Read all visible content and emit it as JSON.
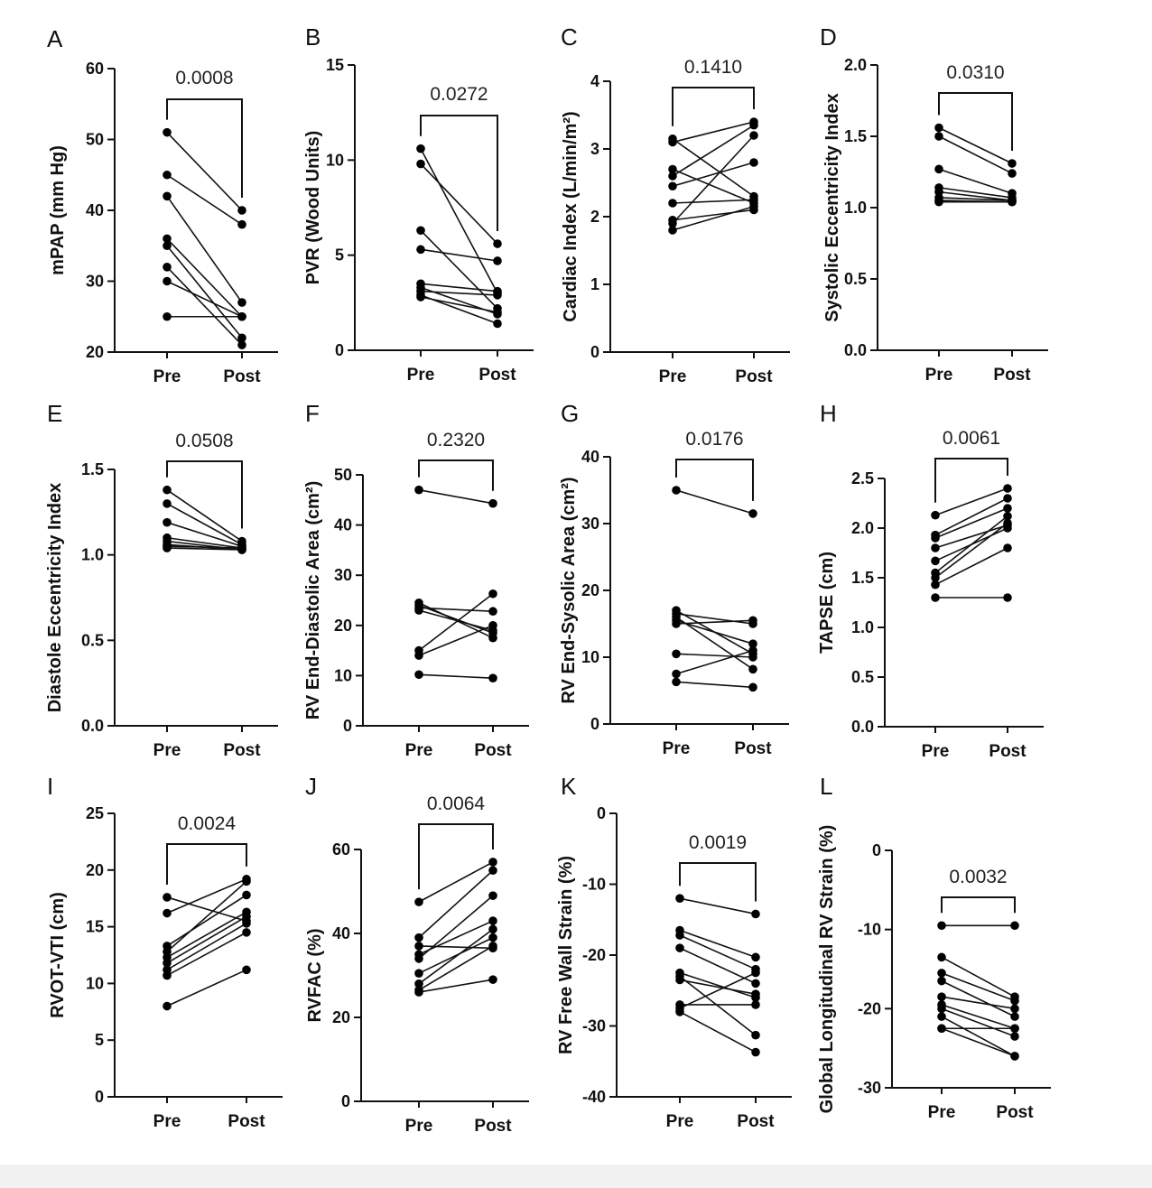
{
  "chart_data": [
    {
      "panel": "A",
      "type": "scatter",
      "title": "",
      "ylabel": "mPAP (mm Hg)",
      "categories": [
        "Pre",
        "Post"
      ],
      "ylim": [
        20,
        60
      ],
      "yticks": [
        20,
        30,
        40,
        50,
        60
      ],
      "pvalue": "0.0008",
      "series": [
        {
          "values": [
            51,
            40
          ]
        },
        {
          "values": [
            45,
            38
          ]
        },
        {
          "values": [
            42,
            27
          ]
        },
        {
          "values": [
            36,
            25
          ]
        },
        {
          "values": [
            35,
            22
          ]
        },
        {
          "values": [
            32,
            21
          ]
        },
        {
          "values": [
            30,
            25
          ]
        },
        {
          "values": [
            25,
            25
          ]
        }
      ]
    },
    {
      "panel": "B",
      "type": "scatter",
      "title": "",
      "ylabel": "PVR (Wood Units)",
      "categories": [
        "Pre",
        "Post"
      ],
      "ylim": [
        0,
        15
      ],
      "yticks": [
        0,
        5,
        10,
        15
      ],
      "pvalue": "0.0272",
      "series": [
        {
          "values": [
            10.6,
            3.0
          ]
        },
        {
          "values": [
            9.8,
            5.6
          ]
        },
        {
          "values": [
            6.3,
            2.2
          ]
        },
        {
          "values": [
            5.3,
            4.7
          ]
        },
        {
          "values": [
            3.5,
            3.1
          ]
        },
        {
          "values": [
            3.3,
            1.9
          ]
        },
        {
          "values": [
            3.1,
            2.9
          ]
        },
        {
          "values": [
            2.9,
            1.4
          ]
        },
        {
          "values": [
            2.8,
            2.0
          ]
        }
      ]
    },
    {
      "panel": "C",
      "type": "scatter",
      "title": "",
      "ylabel": "Cardiac Index (L/min/m²)",
      "categories": [
        "Pre",
        "Post"
      ],
      "ylim": [
        0,
        4
      ],
      "yticks": [
        0,
        1,
        2,
        3,
        4
      ],
      "pvalue": "0.1410",
      "series": [
        {
          "values": [
            3.15,
            2.3
          ]
        },
        {
          "values": [
            3.1,
            3.4
          ]
        },
        {
          "values": [
            2.7,
            2.2
          ]
        },
        {
          "values": [
            2.6,
            3.35
          ]
        },
        {
          "values": [
            2.45,
            2.8
          ]
        },
        {
          "values": [
            2.2,
            2.25
          ]
        },
        {
          "values": [
            1.95,
            2.1
          ]
        },
        {
          "values": [
            1.9,
            3.2
          ]
        },
        {
          "values": [
            1.8,
            2.15
          ]
        }
      ]
    },
    {
      "panel": "D",
      "type": "scatter",
      "title": "",
      "ylabel": "Systolic Eccentricity Index",
      "categories": [
        "Pre",
        "Post"
      ],
      "ylim": [
        0,
        2
      ],
      "yticks": [
        "0.0",
        "0.5",
        "1.0",
        "1.5",
        "2.0"
      ],
      "pvalue": "0.0310",
      "series": [
        {
          "values": [
            1.56,
            1.31
          ]
        },
        {
          "values": [
            1.5,
            1.24
          ]
        },
        {
          "values": [
            1.27,
            1.1
          ]
        },
        {
          "values": [
            1.14,
            1.07
          ]
        },
        {
          "values": [
            1.11,
            1.05
          ]
        },
        {
          "values": [
            1.07,
            1.05
          ]
        },
        {
          "values": [
            1.05,
            1.04
          ]
        },
        {
          "values": [
            1.04,
            1.04
          ]
        }
      ]
    },
    {
      "panel": "E",
      "type": "scatter",
      "title": "",
      "ylabel": "Diastole Eccentricity Index",
      "categories": [
        "Pre",
        "Post"
      ],
      "ylim": [
        0,
        1.5
      ],
      "yticks": [
        "0.0",
        "0.5",
        "1.0",
        "1.5"
      ],
      "pvalue": "0.0508",
      "series": [
        {
          "values": [
            1.38,
            1.08
          ]
        },
        {
          "values": [
            1.3,
            1.06
          ]
        },
        {
          "values": [
            1.19,
            1.05
          ]
        },
        {
          "values": [
            1.1,
            1.04
          ]
        },
        {
          "values": [
            1.08,
            1.03
          ]
        },
        {
          "values": [
            1.06,
            1.03
          ]
        },
        {
          "values": [
            1.05,
            1.04
          ]
        },
        {
          "values": [
            1.04,
            1.03
          ]
        }
      ]
    },
    {
      "panel": "F",
      "type": "scatter",
      "title": "",
      "ylabel": "RV End-Diastolic Area (cm²)",
      "categories": [
        "Pre",
        "Post"
      ],
      "ylim": [
        0,
        50
      ],
      "yticks": [
        0,
        10,
        20,
        30,
        40,
        50
      ],
      "pvalue": "0.2320",
      "series": [
        {
          "values": [
            47,
            44.3
          ]
        },
        {
          "values": [
            24.5,
            17.5
          ]
        },
        {
          "values": [
            24,
            18.5
          ]
        },
        {
          "values": [
            23.5,
            22.8
          ]
        },
        {
          "values": [
            23,
            19
          ]
        },
        {
          "values": [
            15,
            26.3
          ]
        },
        {
          "values": [
            14,
            20
          ]
        },
        {
          "values": [
            10.2,
            9.5
          ]
        }
      ]
    },
    {
      "panel": "G",
      "type": "scatter",
      "title": "",
      "ylabel": "RV End-Sysolic Area (cm²)",
      "categories": [
        "Pre",
        "Post"
      ],
      "ylim": [
        0,
        40
      ],
      "yticks": [
        0,
        10,
        20,
        30,
        40
      ],
      "pvalue": "0.0176",
      "series": [
        {
          "values": [
            35,
            31.5
          ]
        },
        {
          "values": [
            17,
            10.5
          ]
        },
        {
          "values": [
            16.5,
            15
          ]
        },
        {
          "values": [
            16,
            8.2
          ]
        },
        {
          "values": [
            15.5,
            12
          ]
        },
        {
          "values": [
            15,
            15.5
          ]
        },
        {
          "values": [
            10.5,
            10
          ]
        },
        {
          "values": [
            7.5,
            11
          ]
        },
        {
          "values": [
            6.3,
            5.5
          ]
        }
      ]
    },
    {
      "panel": "H",
      "type": "scatter",
      "title": "",
      "ylabel": "TAPSE (cm)",
      "categories": [
        "Pre",
        "Post"
      ],
      "ylim": [
        0,
        2.5
      ],
      "yticks": [
        "0.0",
        "0.5",
        "1.0",
        "1.5",
        "2.0",
        "2.5"
      ],
      "pvalue": "0.0061",
      "series": [
        {
          "values": [
            2.13,
            2.4
          ]
        },
        {
          "values": [
            1.93,
            2.3
          ]
        },
        {
          "values": [
            1.9,
            2.2
          ]
        },
        {
          "values": [
            1.8,
            2.03
          ]
        },
        {
          "values": [
            1.67,
            2.0
          ]
        },
        {
          "values": [
            1.55,
            2.12
          ]
        },
        {
          "values": [
            1.5,
            2.05
          ]
        },
        {
          "values": [
            1.43,
            1.8
          ]
        },
        {
          "values": [
            1.3,
            1.3
          ]
        }
      ]
    },
    {
      "panel": "I",
      "type": "scatter",
      "title": "",
      "ylabel": "RVOT-VTI (cm)",
      "categories": [
        "Pre",
        "Post"
      ],
      "ylim": [
        0,
        25
      ],
      "yticks": [
        0,
        5,
        10,
        15,
        20,
        25
      ],
      "pvalue": "0.0024",
      "series": [
        {
          "values": [
            17.6,
            15.5
          ]
        },
        {
          "values": [
            16.2,
            19.2
          ]
        },
        {
          "values": [
            13.3,
            17.8
          ]
        },
        {
          "values": [
            12.8,
            19
          ]
        },
        {
          "values": [
            12.3,
            16.3
          ]
        },
        {
          "values": [
            11.8,
            15.9
          ]
        },
        {
          "values": [
            11.2,
            15.3
          ]
        },
        {
          "values": [
            10.7,
            14.5
          ]
        },
        {
          "values": [
            8.0,
            11.2
          ]
        }
      ]
    },
    {
      "panel": "J",
      "type": "scatter",
      "title": "",
      "ylabel": "RVFAC (%)",
      "categories": [
        "Pre",
        "Post"
      ],
      "ylim": [
        0,
        60
      ],
      "yticks": [
        0,
        20,
        40,
        60
      ],
      "pvalue": "0.0064",
      "series": [
        {
          "values": [
            47.5,
            57
          ]
        },
        {
          "values": [
            39,
            55
          ]
        },
        {
          "values": [
            37,
            36.5
          ]
        },
        {
          "values": [
            35,
            43
          ]
        },
        {
          "values": [
            34,
            49
          ]
        },
        {
          "values": [
            30.5,
            39
          ]
        },
        {
          "values": [
            28,
            41
          ]
        },
        {
          "values": [
            26.5,
            37
          ]
        },
        {
          "values": [
            26,
            29
          ]
        }
      ]
    },
    {
      "panel": "K",
      "type": "scatter",
      "title": "",
      "ylabel": "RV Free Wall Strain (%)",
      "categories": [
        "Pre",
        "Post"
      ],
      "ylim": [
        -40,
        0
      ],
      "yticks": [
        -40,
        -30,
        -20,
        -10,
        0
      ],
      "pvalue": "0.0019",
      "series": [
        {
          "values": [
            -12,
            -14.2
          ]
        },
        {
          "values": [
            -16.5,
            -20.3
          ]
        },
        {
          "values": [
            -17.2,
            -22
          ]
        },
        {
          "values": [
            -19,
            -24
          ]
        },
        {
          "values": [
            -22.5,
            -26
          ]
        },
        {
          "values": [
            -23,
            -31.3
          ]
        },
        {
          "values": [
            -23.5,
            -25.5
          ]
        },
        {
          "values": [
            -27,
            -27
          ]
        },
        {
          "values": [
            -27.5,
            -22.5
          ]
        },
        {
          "values": [
            -28,
            -33.7
          ]
        }
      ]
    },
    {
      "panel": "L",
      "type": "scatter",
      "title": "",
      "ylabel": "Global Longitudinal  RV  Strain (%)",
      "categories": [
        "Pre",
        "Post"
      ],
      "ylim": [
        -30,
        0
      ],
      "yticks": [
        -30,
        -20,
        -10,
        0
      ],
      "pvalue": "0.0032",
      "series": [
        {
          "values": [
            -9.5,
            -9.5
          ]
        },
        {
          "values": [
            -13.5,
            -18.5
          ]
        },
        {
          "values": [
            -15.5,
            -19
          ]
        },
        {
          "values": [
            -16.5,
            -21
          ]
        },
        {
          "values": [
            -18.5,
            -20
          ]
        },
        {
          "values": [
            -19.5,
            -22.5
          ]
        },
        {
          "values": [
            -20,
            -23.5
          ]
        },
        {
          "values": [
            -22.5,
            -26
          ]
        },
        {
          "values": [
            -22.5,
            -22.5
          ]
        },
        {
          "values": [
            -21,
            -26
          ]
        }
      ]
    }
  ]
}
